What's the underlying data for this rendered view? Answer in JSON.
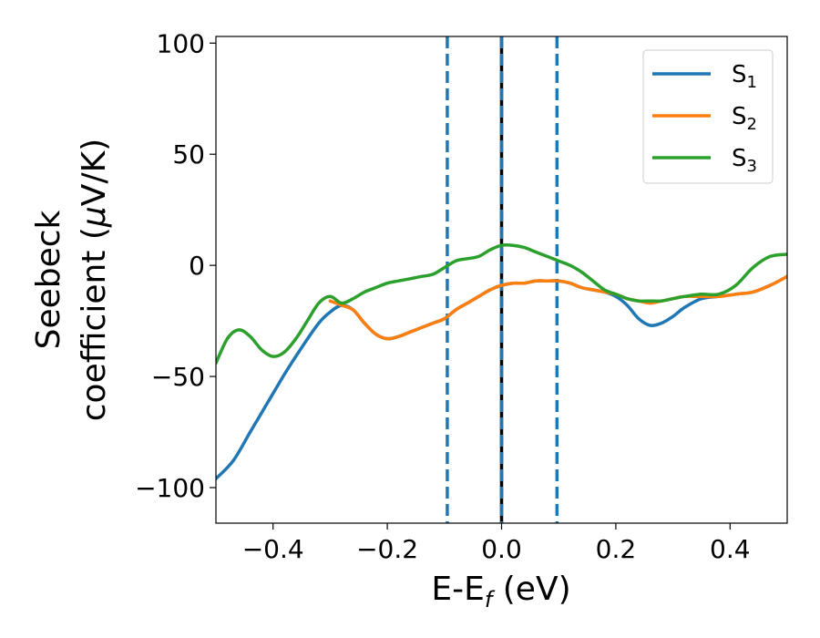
{
  "chart_data": {
    "type": "line",
    "xlabel": {
      "main": "E-E",
      "sub": "f",
      "unit": " (eV)"
    },
    "ylabel": {
      "line1": "Seebeck",
      "line2_pre": "coefficient  (",
      "line2_mu": "μ",
      "line2_post": "V/K)"
    },
    "xlim": [
      -0.5,
      0.5
    ],
    "ylim": [
      -116,
      103
    ],
    "xticks": [
      -0.4,
      -0.2,
      0.0,
      0.2,
      0.4
    ],
    "xtick_labels": [
      "−0.4",
      "−0.2",
      "0.0",
      "0.2",
      "0.4"
    ],
    "yticks": [
      -100,
      -50,
      0,
      50,
      100
    ],
    "ytick_labels": [
      "−100",
      "−50",
      "0",
      "50",
      "100"
    ],
    "grid": false,
    "legend_position": "top-right",
    "vlines": [
      {
        "x": -0.095,
        "color": "#1f77b4",
        "style": "dashed"
      },
      {
        "x": 0.0,
        "color": "#000000",
        "style": "solid"
      },
      {
        "x": 0.0,
        "color": "#1f77b4",
        "style": "dashed"
      },
      {
        "x": 0.097,
        "color": "#1f77b4",
        "style": "dashed"
      }
    ],
    "series": [
      {
        "name": "S",
        "sub": "1",
        "color": "#1f77b4",
        "x": [
          -0.5,
          -0.47,
          -0.44,
          -0.41,
          -0.38,
          -0.35,
          -0.32,
          -0.3,
          -0.28,
          -0.26,
          -0.24,
          -0.22,
          -0.2,
          -0.18,
          -0.16,
          -0.14,
          -0.12,
          -0.1,
          -0.08,
          -0.06,
          -0.04,
          -0.02,
          0.0,
          0.02,
          0.04,
          0.06,
          0.08,
          0.1,
          0.12,
          0.14,
          0.16,
          0.18,
          0.2,
          0.22,
          0.24,
          0.26,
          0.28,
          0.3,
          0.32,
          0.35,
          0.38,
          0.41,
          0.44,
          0.47,
          0.5
        ],
        "y": [
          -96,
          -88,
          -75,
          -62,
          -49,
          -37,
          -26,
          -21,
          -18,
          -20,
          -26,
          -31,
          -33,
          -32,
          -30,
          -28,
          -26,
          -24,
          -20,
          -17,
          -14,
          -11,
          -9,
          -8,
          -8,
          -7,
          -7,
          -7,
          -8,
          -10,
          -11,
          -12,
          -14,
          -18,
          -24,
          -27,
          -26,
          -23,
          -19,
          -15,
          -14,
          -13,
          -12,
          -9,
          -5
        ]
      },
      {
        "name": "S",
        "sub": "2",
        "color": "#ff7f0e",
        "x": [
          -0.3,
          -0.28,
          -0.26,
          -0.24,
          -0.22,
          -0.2,
          -0.18,
          -0.16,
          -0.14,
          -0.12,
          -0.1,
          -0.08,
          -0.06,
          -0.04,
          -0.02,
          0.0,
          0.02,
          0.04,
          0.06,
          0.08,
          0.1,
          0.12,
          0.14,
          0.16,
          0.18,
          0.2,
          0.22,
          0.24,
          0.26,
          0.28,
          0.3,
          0.32,
          0.35,
          0.38,
          0.41,
          0.44,
          0.47,
          0.5
        ],
        "y": [
          -16,
          -18,
          -20,
          -26,
          -31,
          -33,
          -32,
          -30,
          -28,
          -26,
          -24,
          -20,
          -17,
          -14,
          -11,
          -9,
          -8,
          -8,
          -7,
          -7,
          -7,
          -8,
          -10,
          -11,
          -12,
          -13,
          -15,
          -16,
          -17,
          -16,
          -15,
          -14,
          -14,
          -14,
          -13,
          -12,
          -9,
          -5
        ]
      },
      {
        "name": "S",
        "sub": "3",
        "color": "#2ca02c",
        "x": [
          -0.5,
          -0.48,
          -0.46,
          -0.44,
          -0.42,
          -0.4,
          -0.38,
          -0.36,
          -0.34,
          -0.32,
          -0.3,
          -0.28,
          -0.26,
          -0.24,
          -0.22,
          -0.2,
          -0.18,
          -0.16,
          -0.14,
          -0.12,
          -0.1,
          -0.08,
          -0.06,
          -0.04,
          -0.02,
          0.0,
          0.02,
          0.04,
          0.06,
          0.08,
          0.1,
          0.12,
          0.14,
          0.16,
          0.18,
          0.2,
          0.22,
          0.24,
          0.26,
          0.28,
          0.3,
          0.32,
          0.35,
          0.38,
          0.41,
          0.44,
          0.47,
          0.5
        ],
        "y": [
          -44,
          -33,
          -29,
          -32,
          -38,
          -41,
          -39,
          -33,
          -25,
          -17,
          -14,
          -17,
          -15,
          -12,
          -10,
          -8,
          -7,
          -6,
          -5,
          -4,
          -1,
          2,
          3,
          4,
          7,
          9,
          9,
          8,
          6,
          4,
          2,
          0,
          -3,
          -7,
          -11,
          -13,
          -15,
          -16,
          -16,
          -16,
          -15,
          -14,
          -13,
          -13,
          -9,
          -1,
          4,
          5
        ]
      }
    ]
  }
}
